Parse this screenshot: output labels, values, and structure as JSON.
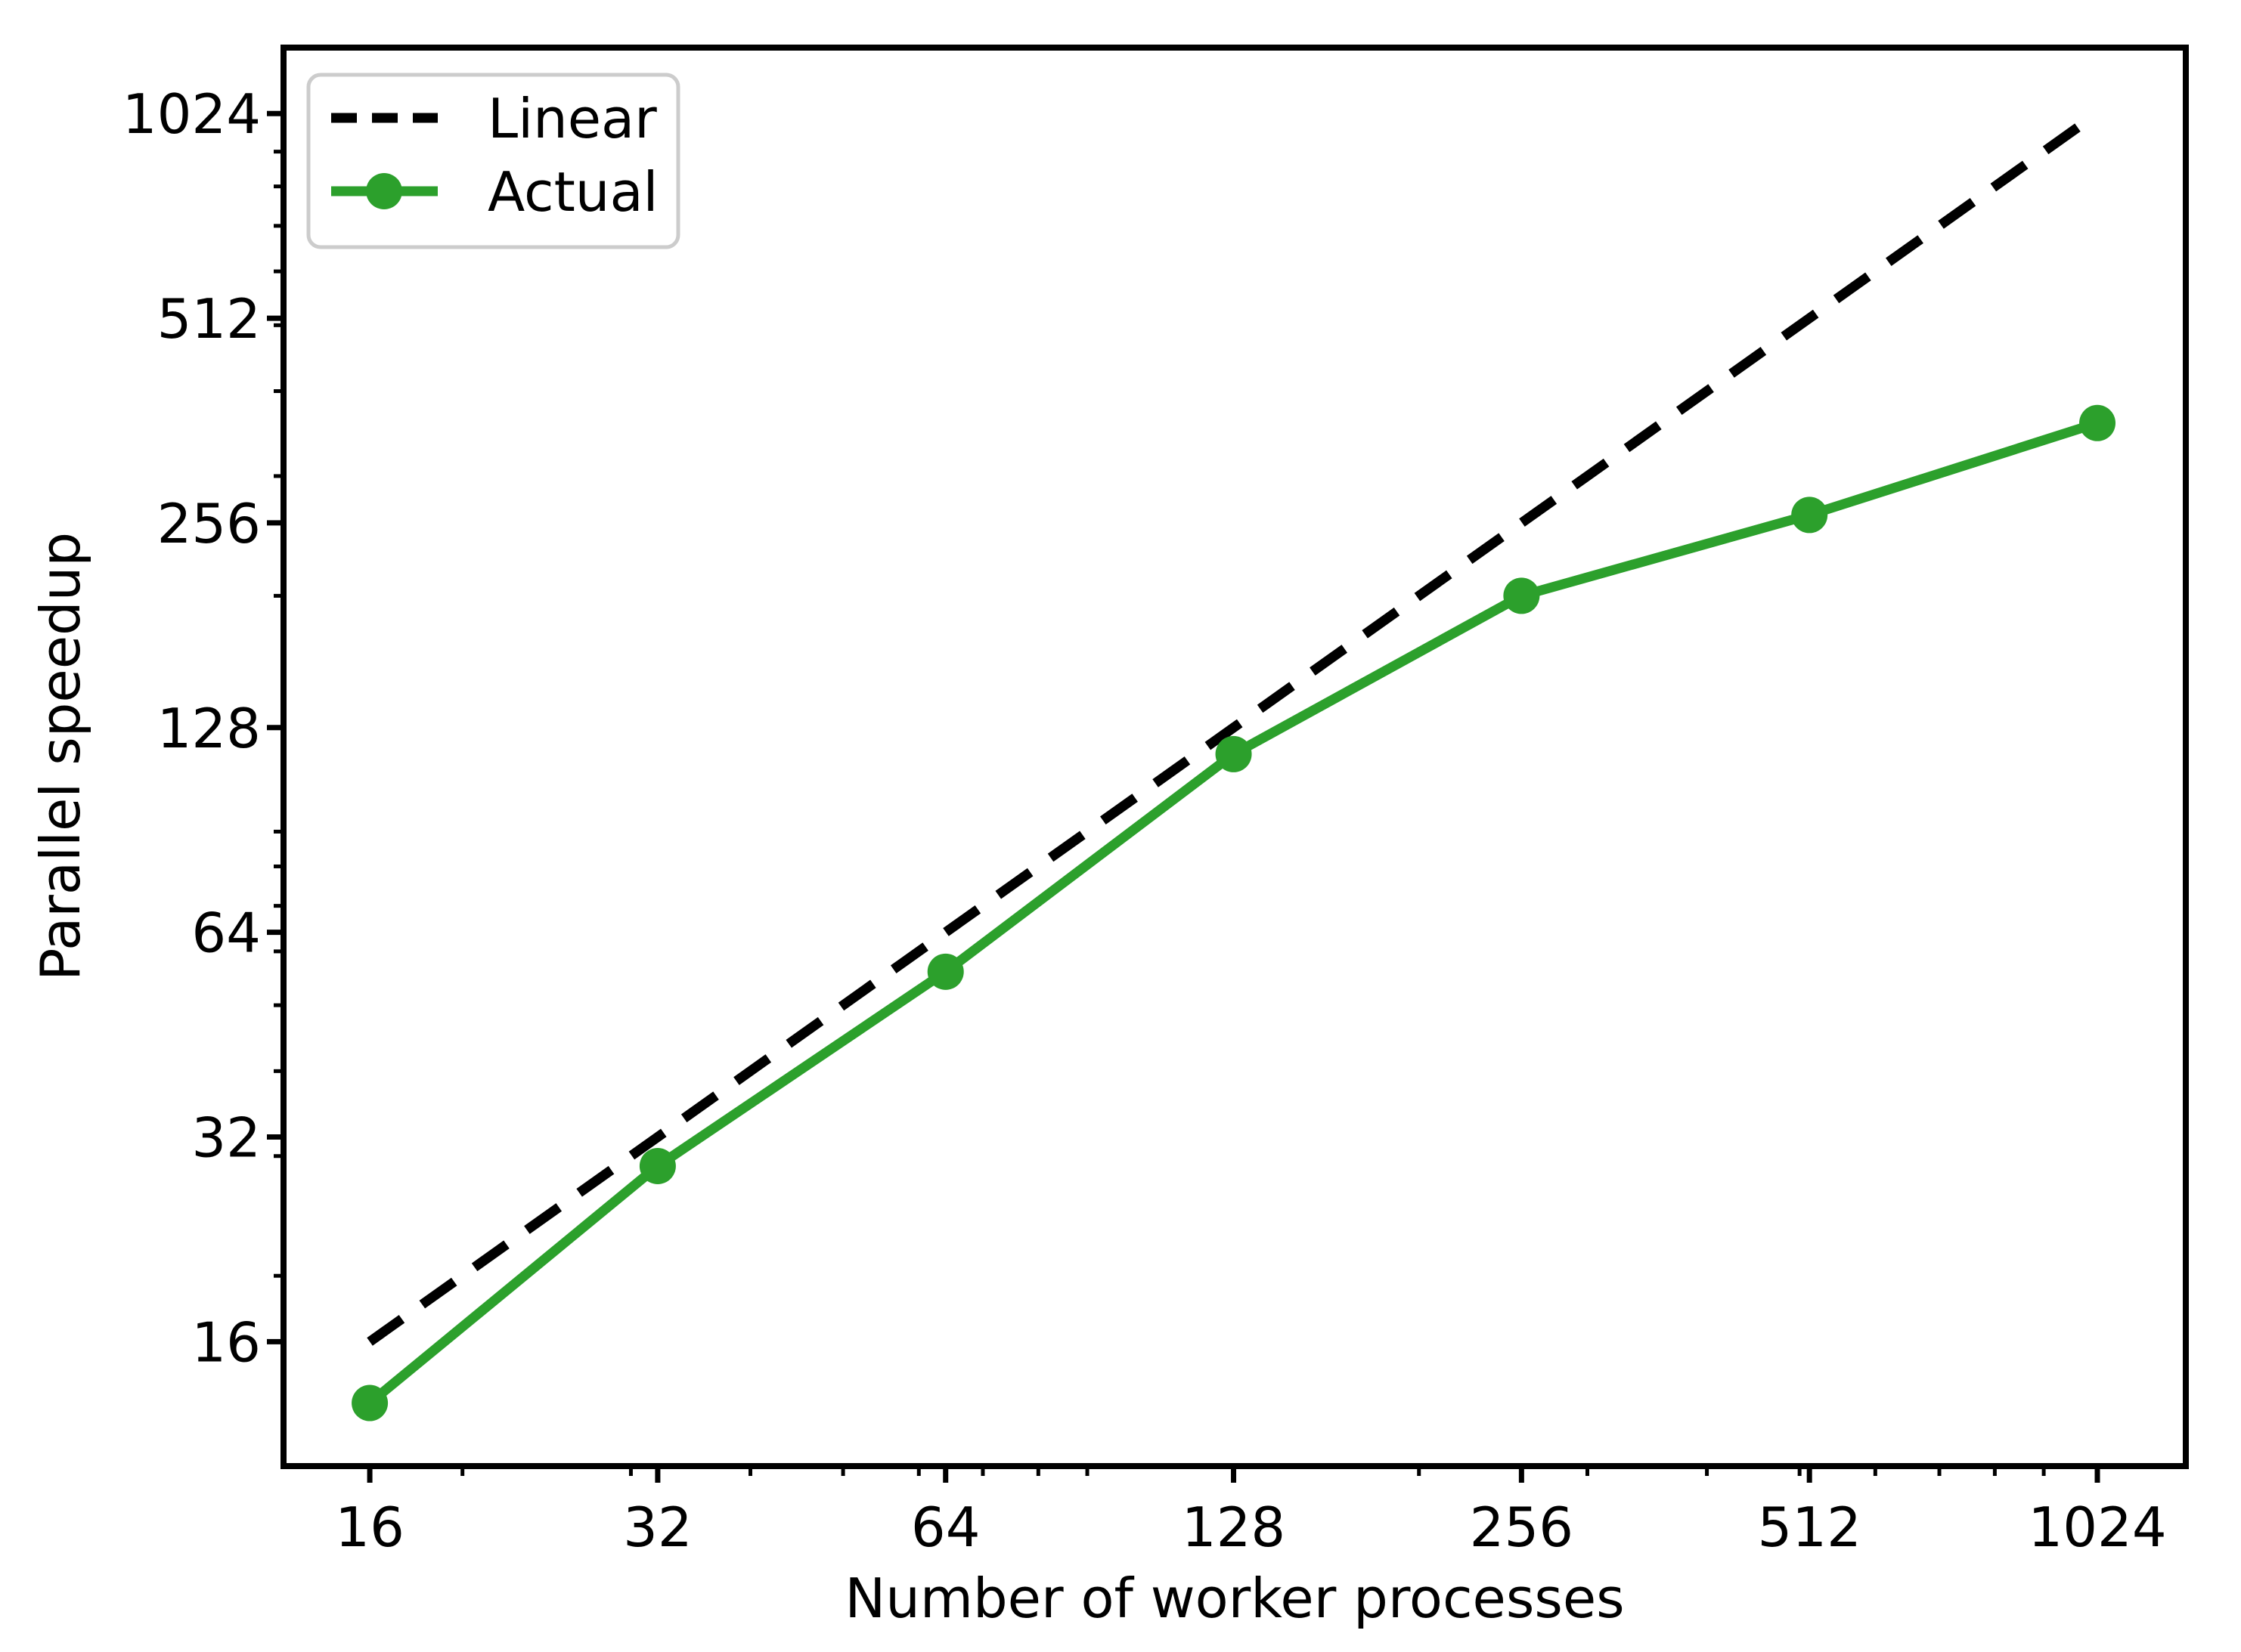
{
  "chart_data": {
    "type": "line",
    "title": "",
    "xlabel": "Number of worker processes",
    "ylabel": "Parallel speedup",
    "x": [
      16,
      32,
      64,
      128,
      256,
      512,
      1024
    ],
    "series": [
      {
        "name": "Linear",
        "values": [
          16,
          32,
          64,
          128,
          256,
          512,
          1024
        ],
        "color": "#000000",
        "style": "dashed",
        "marker": "none"
      },
      {
        "name": "Actual",
        "values": [
          13,
          29,
          56,
          117,
          200,
          263,
          359
        ],
        "color": "#2ca02c",
        "style": "solid",
        "marker": "circle"
      }
    ],
    "x_scale": "log2",
    "y_scale": "log2",
    "x_ticks": [
      16,
      32,
      64,
      128,
      256,
      512,
      1024
    ],
    "y_ticks": [
      16,
      32,
      64,
      128,
      256,
      512,
      1024
    ],
    "minor_ticks": [
      20,
      30,
      40,
      50,
      60,
      70,
      80,
      90,
      200,
      300,
      400,
      500,
      600,
      700,
      800,
      900
    ],
    "xlim": [
      13.0,
      1267
    ],
    "ylim": [
      10.5,
      1280
    ],
    "grid": false,
    "legend": {
      "position": "upper left",
      "entries": [
        "Linear",
        "Actual"
      ],
      "border_color": "#cccccc",
      "background": "#ffffff"
    },
    "axis_color": "#000000"
  }
}
